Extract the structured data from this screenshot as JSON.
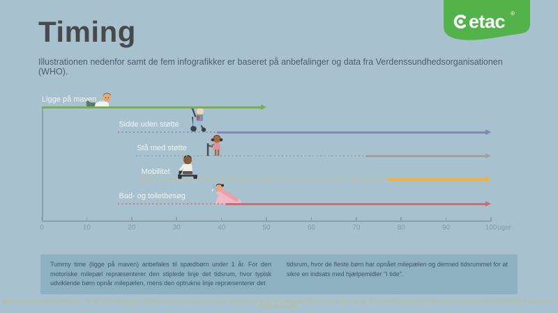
{
  "page": {
    "title": "Timing",
    "subtitle": "Illustrationen nedenfor samt de fem infografikker er baseret på anbefalinger og data fra Verdenssundhedsorganisationen (WHO).",
    "brand": {
      "logo_text": "etac",
      "registered_mark": "®",
      "logo_color": "#54b24b"
    }
  },
  "chart_data": {
    "type": "bar",
    "variant": "milestone-timeline",
    "unit_label": "uger",
    "x_ticks": [
      0,
      10,
      20,
      30,
      40,
      50,
      60,
      70,
      80,
      90,
      100
    ],
    "xlim": [
      0,
      100
    ],
    "grid": false,
    "legend": "none",
    "series": [
      {
        "label": "Ligge på maven",
        "dotted_range": null,
        "solid_range": [
          0,
          50
        ],
        "color": "#79ad4f",
        "arrow": true,
        "illustration": "baby-tummy-time"
      },
      {
        "label": "Sidde uden støtte",
        "dotted_range": [
          17,
          39
        ],
        "solid_range": [
          39,
          100
        ],
        "color": "#8185bb",
        "arrow": true,
        "illustration": "child-in-adaptive-stroller"
      },
      {
        "label": "Stå med støtte",
        "dotted_range": [
          21,
          72
        ],
        "solid_range": [
          72,
          100
        ],
        "color": "#9fa1a4",
        "arrow": true,
        "illustration": "child-standing-with-support"
      },
      {
        "label": "Mobilitet",
        "dotted_range": [
          22,
          77
        ],
        "solid_range": [
          77,
          100
        ],
        "color": "#f2b03c",
        "arrow": true,
        "illustration": "child-on-ride-on"
      },
      {
        "label": "Bad- og toiletbesøg",
        "dotted_range": [
          17,
          41
        ],
        "solid_range": [
          41,
          100
        ],
        "color": "#c96e76",
        "arrow": true,
        "illustration": "child-on-bath-support"
      }
    ]
  },
  "footer": {
    "col1": "Tummy time (ligge på maven) anbefales til spædbørn under 1 år. For den motoriske milepæl repræsenterer den stiplede linje det tidsrum, hvor typisk udviklende børn opnår milepælen, mens den optrukne linje repræsenterer det",
    "col2": "tidsrum, hvor de fleste børn har opnået milepælen og dermed tidsrummet for at sikre en indsats med hjælpemidler \"I tide\".",
    "reference": "Referencer/understøttende litteratur: * World Health Organization. (2019). Guidelines on physical activity, sedentary behaviour and sleep for children under 5 years of age. World Health Organization. https://apps.who.int/iris/handle/10665/311664. License: CC BY-NC-SA 3.0 IGO."
  }
}
